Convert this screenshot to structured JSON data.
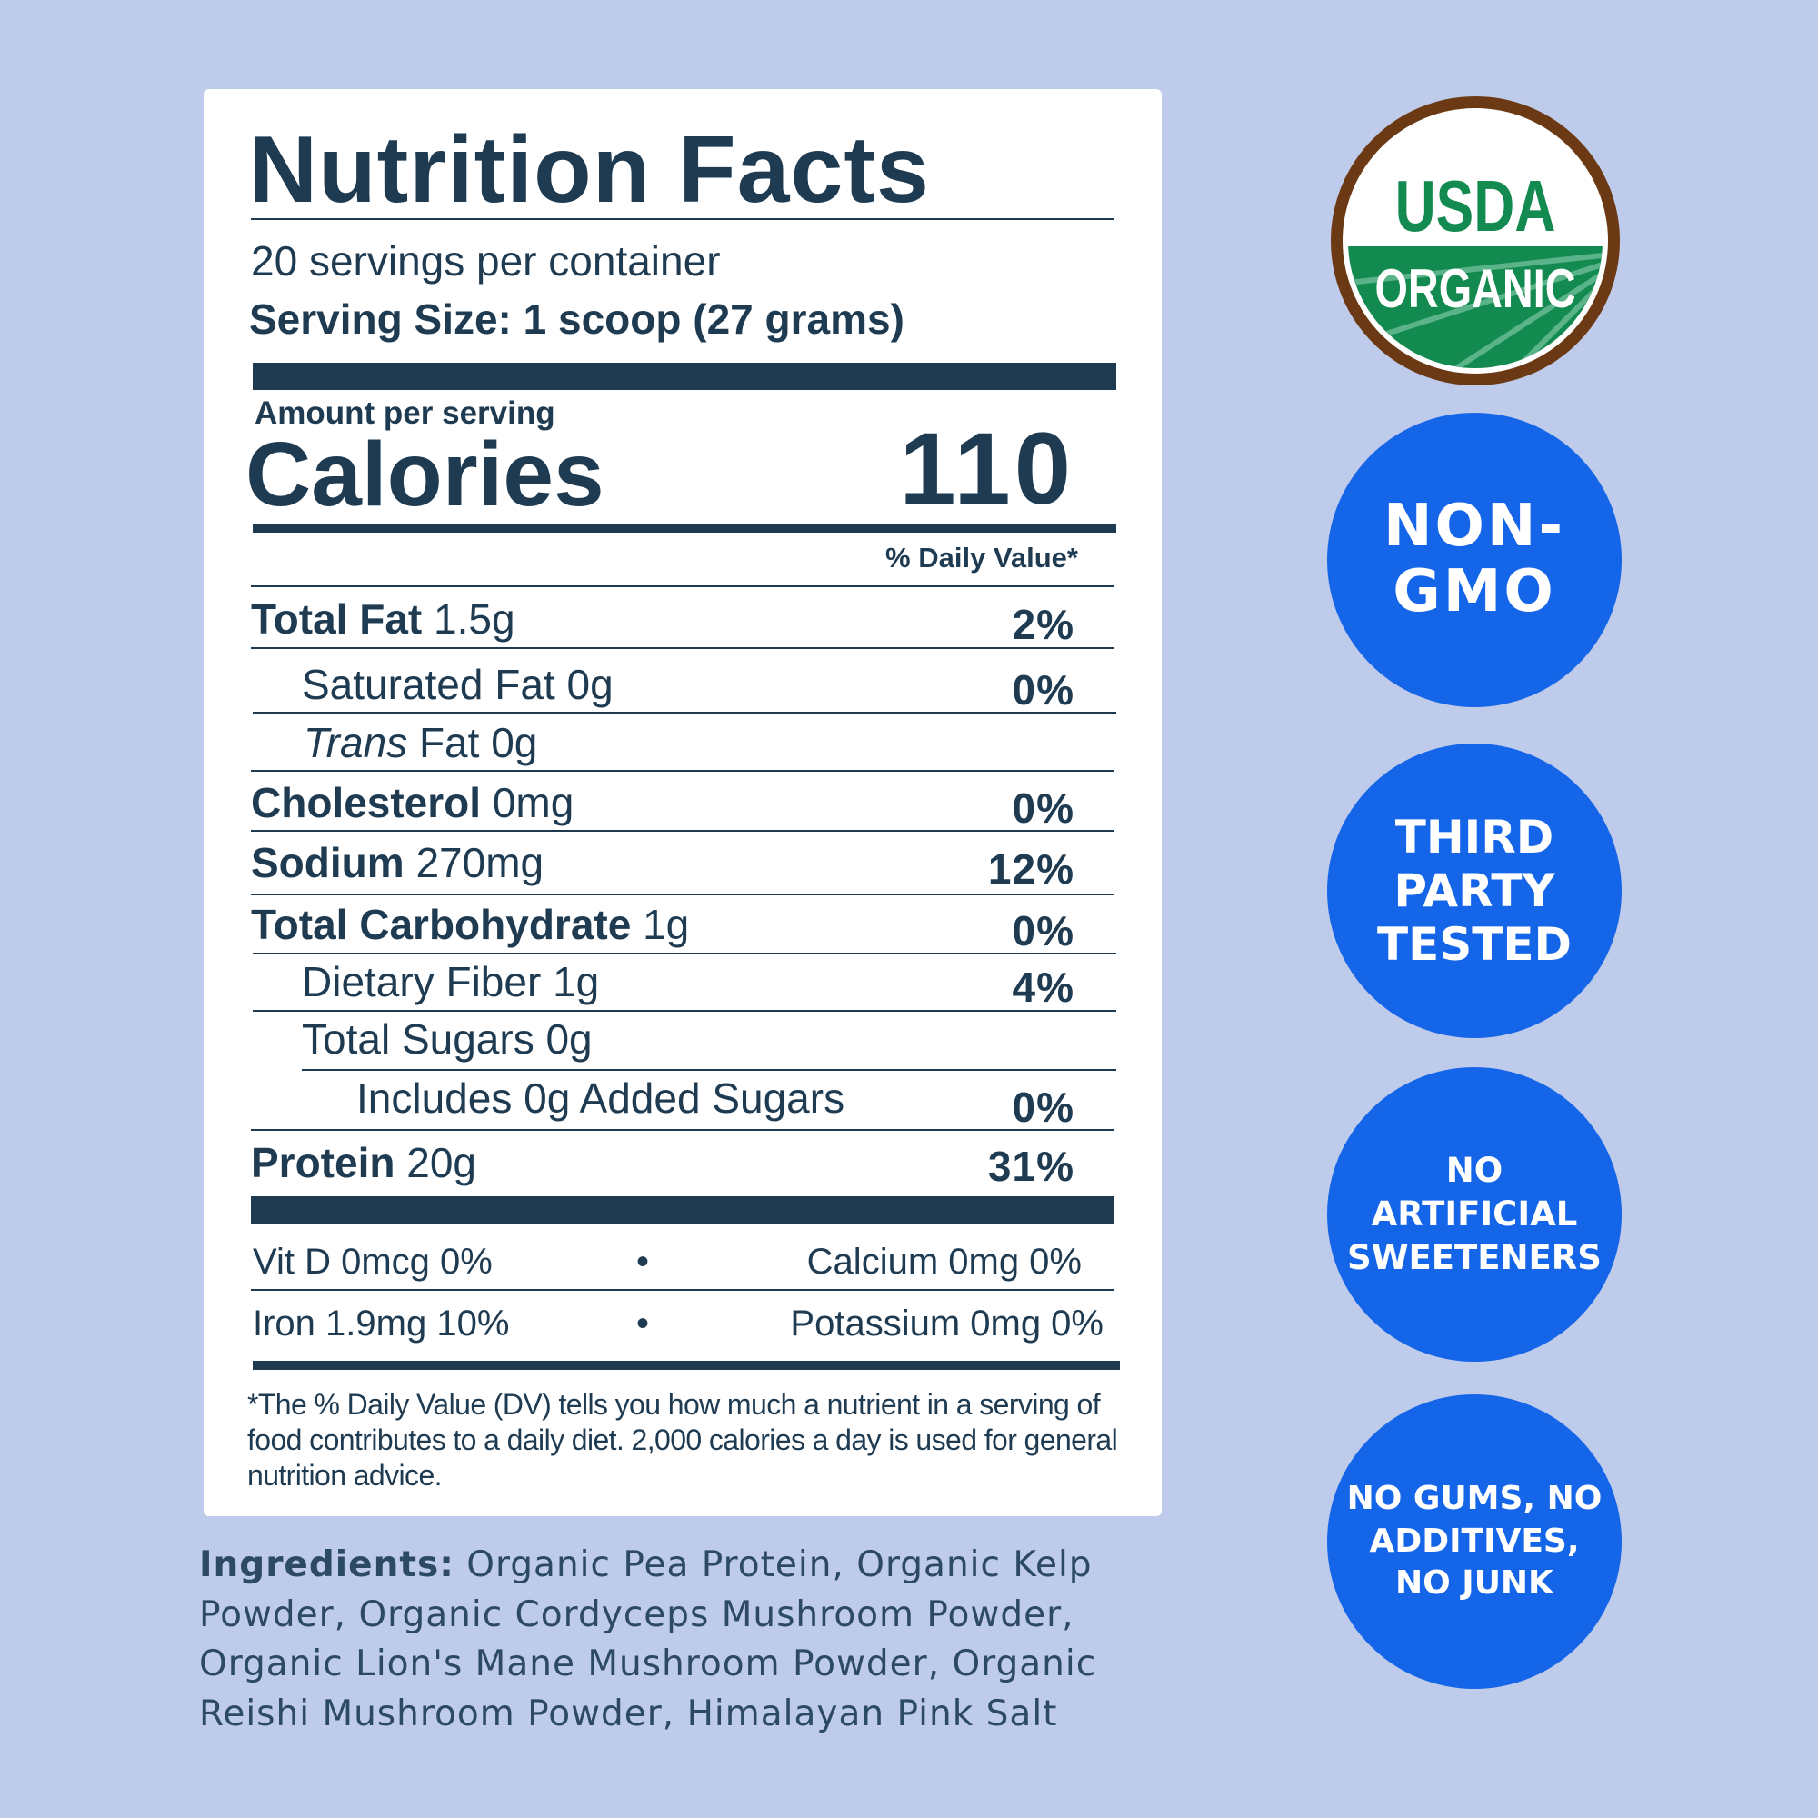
{
  "label": {
    "title": "Nutrition Facts",
    "servings": "20 servings per container",
    "serving_size": "Serving Size: 1 scoop (27 grams)",
    "amount_per_serving": "Amount per serving",
    "calories_label": "Calories",
    "calories_value": "110",
    "dv_header": "% Daily Value*",
    "rows": [
      {
        "name": "Total Fat",
        "amount": "1.5g",
        "dv": "2%"
      },
      {
        "name": "Saturated Fat 0g",
        "amount": "",
        "dv": "0%"
      },
      {
        "name": "Trans",
        "amount": "Fat 0g",
        "dv": ""
      },
      {
        "name": "Cholesterol",
        "amount": "0mg",
        "dv": "0%"
      },
      {
        "name": "Sodium",
        "amount": "270mg",
        "dv": "12%"
      },
      {
        "name": "Total Carbohydrate",
        "amount": "1g",
        "dv": "0%"
      },
      {
        "name": "Dietary Fiber 1g",
        "amount": "",
        "dv": "4%"
      },
      {
        "name": "Total Sugars 0g",
        "amount": "",
        "dv": ""
      },
      {
        "name": "Includes 0g Added Sugars",
        "amount": "",
        "dv": "0%"
      },
      {
        "name": "Protein",
        "amount": "20g",
        "dv": "31%"
      }
    ],
    "vitamins": [
      {
        "left": "Vit D 0mcg 0%",
        "sep": "•",
        "right": "Calcium 0mg 0%"
      },
      {
        "left": "Iron 1.9mg 10%",
        "sep": "•",
        "right": "Potassium 0mg 0%"
      }
    ],
    "footnote": "*The % Daily Value (DV) tells you how much a nutrient in a serving of food contributes to a daily diet. 2,000 calories a day is used for general nutrition advice."
  },
  "ingredients": {
    "label": "Ingredients:",
    "text": " Organic Pea Protein, Organic Kelp Powder, Organic Cordyceps Mushroom Powder, Organic Lion's Mane Mushroom Powder, Organic Reishi Mushroom Powder, Himalayan Pink Salt"
  },
  "badges": {
    "usda_top": "USDA",
    "usda_bottom": "ORGANIC",
    "non_gmo": "NON-GMO",
    "third_party": "THIRD PARTY TESTED",
    "no_artificial": "NO ARTIFICIAL SWEETENERS",
    "no_gums": "NO GUMS, NO ADDITIVES, NO JUNK"
  },
  "colors": {
    "background": "#bfcbea",
    "label_text": "#1f3b52",
    "badge_blue": "#1565e8",
    "usda_green": "#138a4f",
    "usda_brown": "#6b3a14"
  }
}
